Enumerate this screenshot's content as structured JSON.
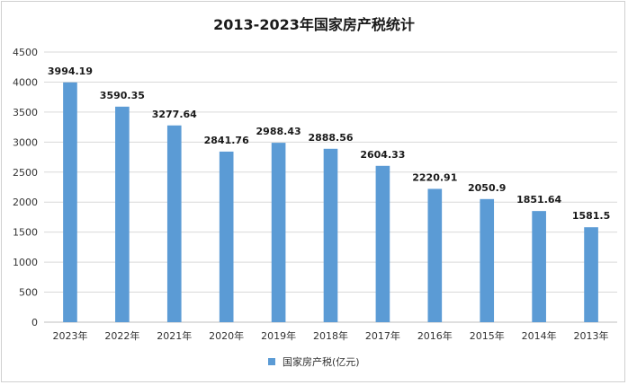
{
  "chart_data": {
    "type": "bar",
    "title": "2013-2023年国家房产税统计",
    "categories": [
      "2023年",
      "2022年",
      "2021年",
      "2020年",
      "2019年",
      "2018年",
      "2017年",
      "2016年",
      "2015年",
      "2014年",
      "2013年"
    ],
    "series": [
      {
        "name": "国家房产税(亿元)",
        "values": [
          3994.19,
          3590.35,
          3277.64,
          2841.76,
          2988.43,
          2888.56,
          2604.33,
          2220.91,
          2050.9,
          1851.64,
          1581.5
        ],
        "data_labels": [
          "3994.19",
          "3590.35",
          "3277.64",
          "2841.76",
          "2988.43",
          "2888.56",
          "2604.33",
          "2220.91",
          "2050.9",
          "1851.64",
          "1581.5"
        ]
      }
    ],
    "ylim": [
      0,
      4500
    ],
    "yticks": [
      0,
      500,
      1000,
      1500,
      2000,
      2500,
      3000,
      3500,
      4000,
      4500
    ],
    "grid": true,
    "legend_position": "bottom",
    "bar_color": "#5b9bd5"
  }
}
